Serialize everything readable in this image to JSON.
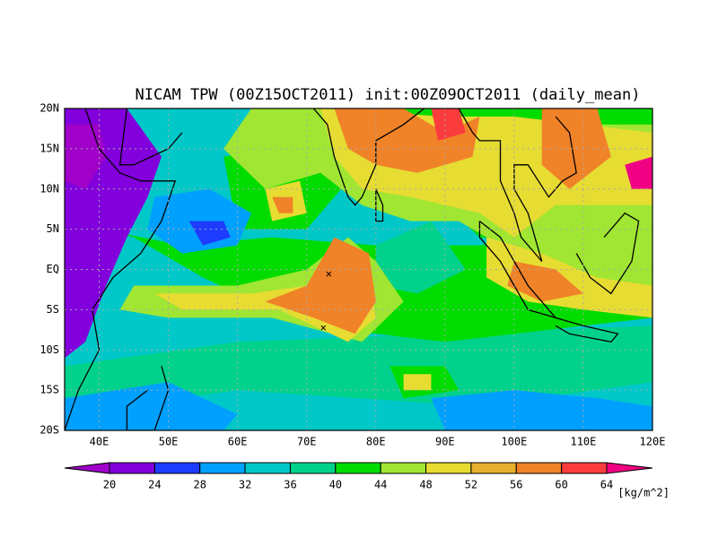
{
  "title": "NICAM TPW (00Z15OCT2011) init:00Z09OCT2011 (daily_mean)",
  "map": {
    "xlim": [
      35,
      120
    ],
    "ylim": [
      -20,
      20
    ],
    "xticks": [
      {
        "value": 40,
        "label": "40E"
      },
      {
        "value": 50,
        "label": "50E"
      },
      {
        "value": 60,
        "label": "60E"
      },
      {
        "value": 70,
        "label": "70E"
      },
      {
        "value": 80,
        "label": "80E"
      },
      {
        "value": 90,
        "label": "90E"
      },
      {
        "value": 100,
        "label": "100E"
      },
      {
        "value": 110,
        "label": "110E"
      },
      {
        "value": 120,
        "label": "120E"
      }
    ],
    "yticks": [
      {
        "value": 20,
        "label": "20N"
      },
      {
        "value": 15,
        "label": "15N"
      },
      {
        "value": 10,
        "label": "10N"
      },
      {
        "value": 5,
        "label": "5N"
      },
      {
        "value": 0,
        "label": "EQ"
      },
      {
        "value": -5,
        "label": "5S"
      },
      {
        "value": -10,
        "label": "10S"
      },
      {
        "value": -15,
        "label": "15S"
      },
      {
        "value": -20,
        "label": "20S"
      }
    ],
    "grid": true
  },
  "colorbar": {
    "levels": [
      20,
      24,
      28,
      32,
      36,
      40,
      44,
      48,
      52,
      56,
      60,
      64
    ],
    "colors": [
      "#a000c8",
      "#8200dc",
      "#1e3cff",
      "#00a0ff",
      "#00c8c8",
      "#00d28c",
      "#00dc00",
      "#a0e632",
      "#e6dc32",
      "#e6af2d",
      "#f08228",
      "#fa3c3c",
      "#f00082"
    ],
    "unit": "[kg/m^2]"
  }
}
